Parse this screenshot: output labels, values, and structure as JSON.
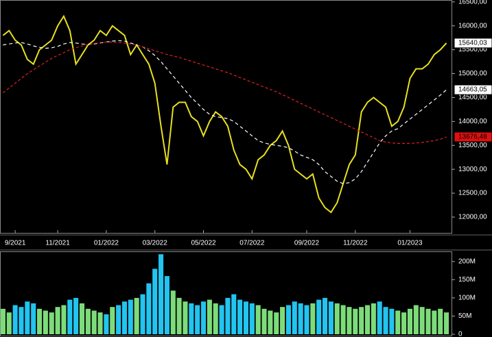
{
  "chart_data": {
    "type": "line",
    "categories": [
      null,
      null,
      "9/2021",
      null,
      null,
      null,
      null,
      null,
      null,
      "11/2021",
      null,
      null,
      null,
      null,
      null,
      null,
      null,
      "01/2022",
      null,
      null,
      null,
      null,
      null,
      null,
      null,
      "03/2022",
      null,
      null,
      null,
      null,
      null,
      null,
      null,
      "05/2022",
      null,
      null,
      null,
      null,
      null,
      null,
      null,
      "07/2022",
      null,
      null,
      null,
      null,
      null,
      null,
      null,
      null,
      "09/2022",
      null,
      null,
      null,
      null,
      null,
      null,
      null,
      "11/2022",
      null,
      null,
      null,
      null,
      null,
      null,
      null,
      null,
      "01/2023",
      null,
      null,
      null,
      null,
      null,
      null
    ],
    "ylim": [
      11670,
      16540
    ],
    "yticks": [
      {
        "value": 12000,
        "label": "12000,00"
      },
      {
        "value": 12500,
        "label": "12500,00"
      },
      {
        "value": 13000,
        "label": "13000,00"
      },
      {
        "value": 13500,
        "label": "13500,00"
      },
      {
        "value": 14000,
        "label": "14000,00"
      },
      {
        "value": 14500,
        "label": "14500,00"
      },
      {
        "value": 15000,
        "label": "15000,00"
      },
      {
        "value": 15500,
        "label": "15500,00"
      },
      {
        "value": 16000,
        "label": "16000,00"
      },
      {
        "value": 16500,
        "label": "16500,00"
      }
    ],
    "series": [
      {
        "color": "#e8e020",
        "dash": "",
        "end_label": "15640,03",
        "end_bg": "#ffffff",
        "values": [
          15800,
          15900,
          15700,
          15600,
          15300,
          15200,
          15500,
          15600,
          15700,
          16000,
          16200,
          15900,
          15200,
          15400,
          15600,
          15700,
          15900,
          15800,
          16000,
          15900,
          15800,
          15400,
          15600,
          15400,
          15200,
          14800,
          13900,
          13100,
          14300,
          14400,
          14400,
          14100,
          14000,
          13700,
          14000,
          14200,
          14100,
          13900,
          13400,
          13100,
          13000,
          12800,
          13200,
          13300,
          13500,
          13600,
          13800,
          13500,
          13000,
          12900,
          12800,
          12900,
          12400,
          12200,
          12100,
          12300,
          12700,
          13100,
          13300,
          14200,
          14400,
          14500,
          14400,
          14300,
          13900,
          14000,
          14300,
          14900,
          15100,
          15100,
          15200,
          15400,
          15500,
          15640.03
        ]
      },
      {
        "color": "#ffffff",
        "dash": "5 4",
        "end_label": "14663,05",
        "end_bg": "#ffffff",
        "values": [
          15600,
          15620,
          15640,
          15650,
          15620,
          15580,
          15550,
          15530,
          15540,
          15570,
          15620,
          15650,
          15640,
          15620,
          15610,
          15620,
          15640,
          15660,
          15680,
          15690,
          15680,
          15640,
          15600,
          15560,
          15480,
          15380,
          15250,
          15100,
          14950,
          14800,
          14650,
          14500,
          14380,
          14250,
          14150,
          14100,
          14080,
          14060,
          14000,
          13900,
          13800,
          13700,
          13600,
          13550,
          13520,
          13500,
          13480,
          13450,
          13380,
          13300,
          13250,
          13200,
          13100,
          12950,
          12850,
          12750,
          12700,
          12720,
          12800,
          12950,
          13150,
          13350,
          13550,
          13700,
          13800,
          13850,
          13950,
          14050,
          14150,
          14250,
          14350,
          14450,
          14550,
          14663.05
        ]
      },
      {
        "color": "#e02020",
        "dash": "4 3",
        "end_label": "13676,48",
        "end_bg": "#e01010",
        "values": [
          14600,
          14700,
          14800,
          14900,
          15000,
          15080,
          15160,
          15240,
          15320,
          15380,
          15440,
          15500,
          15540,
          15580,
          15610,
          15630,
          15650,
          15660,
          15660,
          15650,
          15640,
          15620,
          15600,
          15560,
          15520,
          15480,
          15440,
          15400,
          15370,
          15340,
          15300,
          15260,
          15220,
          15180,
          15140,
          15100,
          15060,
          15020,
          14970,
          14920,
          14870,
          14820,
          14770,
          14720,
          14670,
          14620,
          14560,
          14500,
          14440,
          14380,
          14320,
          14260,
          14200,
          14140,
          14080,
          14020,
          13960,
          13900,
          13840,
          13780,
          13720,
          13660,
          13600,
          13570,
          13550,
          13540,
          13540,
          13540,
          13550,
          13560,
          13580,
          13600,
          13630,
          13676.48
        ]
      }
    ],
    "volume": {
      "ylim": [
        0,
        226
      ],
      "yticks": [
        0,
        {
          "value": 50,
          "label": "50M"
        },
        {
          "value": 100,
          "label": "100M"
        },
        {
          "value": 150,
          "label": "150M"
        },
        {
          "value": 200,
          "label": "200M"
        }
      ],
      "up_color": "#7ddc7a",
      "down_color": "#22c4f0",
      "values": [
        70,
        60,
        80,
        75,
        90,
        85,
        70,
        65,
        60,
        75,
        80,
        95,
        100,
        85,
        70,
        65,
        60,
        55,
        75,
        80,
        90,
        95,
        100,
        110,
        140,
        180,
        220,
        160,
        120,
        100,
        90,
        85,
        80,
        90,
        95,
        85,
        80,
        100,
        110,
        95,
        90,
        85,
        80,
        70,
        65,
        60,
        75,
        80,
        90,
        85,
        80,
        85,
        95,
        100,
        90,
        85,
        80,
        75,
        70,
        75,
        80,
        85,
        90,
        75,
        70,
        65,
        60,
        70,
        80,
        75,
        70,
        65,
        70,
        60
      ]
    }
  }
}
